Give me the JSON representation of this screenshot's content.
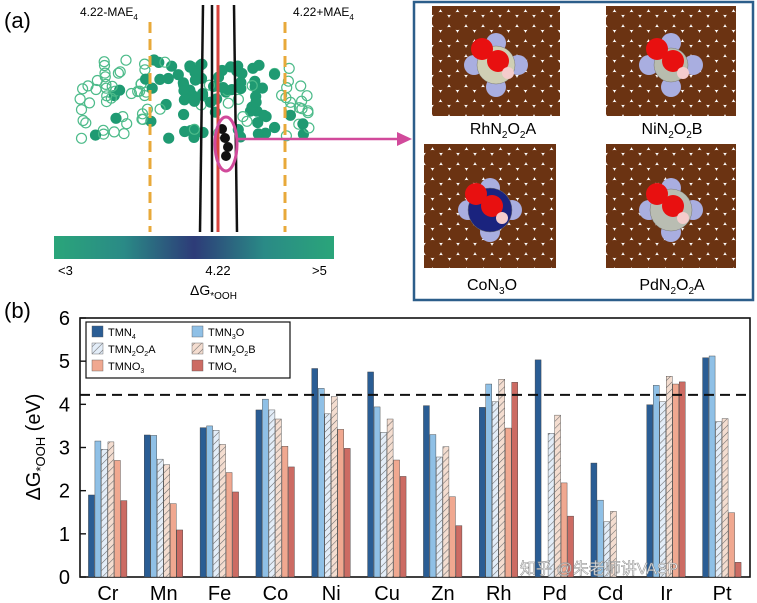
{
  "panel_a": {
    "label": "(a)",
    "left_line_label": "4.22-MAE",
    "left_line_sub": "4",
    "right_line_label": "4.22+MAE",
    "right_line_sub": "4",
    "colorbar": {
      "min_label": "<3",
      "mid_label": "4.22",
      "max_label": ">5"
    },
    "axis_label_main": "ΔG",
    "axis_label_sub": "*OOH",
    "colors": {
      "dashed": "#e8a93a",
      "center_line": "#d9453e",
      "outline": "#111111",
      "dot_filled": "#1f9a72",
      "dot_open": "#4dbb8a",
      "highlight": "#d14a9b",
      "box": "#2c5e8a"
    },
    "structures": [
      {
        "label_main": "RhN",
        "s1": "2",
        "mid": "O",
        "s2": "2",
        "tail": "A"
      },
      {
        "label_main": "NiN",
        "s1": "2",
        "mid": "O",
        "s2": "2",
        "tail": "B"
      },
      {
        "label_main": "CoN",
        "s1": "3",
        "mid": "O",
        "s2": "",
        "tail": ""
      },
      {
        "label_main": "PdN",
        "s1": "2",
        "mid": "O",
        "s2": "2",
        "tail": "A"
      }
    ]
  },
  "panel_b": {
    "label": "(b)",
    "ylabel_main": "ΔG",
    "ylabel_sub": "*OOH",
    "ylabel_unit": " (eV)",
    "watermark": "知乎 @朱老师讲VASP"
  },
  "chart_data": {
    "type": "bar",
    "title": "",
    "xlabel": "",
    "ylabel": "ΔG*OOH (eV)",
    "ylim": [
      0,
      6
    ],
    "yticks": [
      "0",
      "1",
      "2",
      "3",
      "4",
      "5",
      "6"
    ],
    "reference_line": 4.22,
    "categories": [
      "Cr",
      "Mn",
      "Fe",
      "Co",
      "Ni",
      "Cu",
      "Zn",
      "Rh",
      "Pd",
      "Cd",
      "Ir",
      "Pt"
    ],
    "series": [
      {
        "name": "TMN4",
        "legend_main": "TMN",
        "legend_sub": "4",
        "legend_tail": "",
        "color": "#2a5d94",
        "pattern": "solid",
        "values": [
          1.9,
          3.29,
          3.46,
          3.87,
          4.83,
          4.75,
          3.97,
          3.93,
          5.03,
          2.64,
          3.99,
          5.08
        ]
      },
      {
        "name": "TMN3O",
        "legend_main": "TMN",
        "legend_sub": "3",
        "legend_tail": "O",
        "color": "#8fc0e6",
        "pattern": "solid",
        "values": [
          3.15,
          3.28,
          3.5,
          4.12,
          4.37,
          3.94,
          3.3,
          4.47,
          0,
          1.78,
          4.44,
          5.12
        ]
      },
      {
        "name": "TMN2O2A",
        "legend_main": "TMN",
        "legend_sub": "2",
        "legend_tail": "O2A",
        "color": "#e3edf8",
        "pattern": "hatch",
        "values": [
          2.96,
          2.73,
          3.4,
          3.87,
          3.78,
          3.35,
          2.78,
          4.06,
          3.33,
          1.28,
          4.06,
          3.6
        ]
      },
      {
        "name": "TMN2O2B",
        "legend_main": "TMN",
        "legend_sub": "2",
        "legend_tail": "O2B",
        "color": "#f4ddd0",
        "pattern": "hatch",
        "values": [
          3.13,
          2.6,
          3.07,
          3.66,
          4.18,
          3.66,
          3.02,
          4.58,
          3.75,
          1.52,
          4.65,
          3.67
        ]
      },
      {
        "name": "TMNO3",
        "legend_main": "TMNO",
        "legend_sub": "3",
        "legend_tail": "",
        "color": "#f0a890",
        "pattern": "solid",
        "values": [
          2.7,
          1.7,
          2.42,
          3.03,
          3.42,
          2.71,
          1.86,
          3.45,
          2.18,
          0,
          4.47,
          1.49
        ]
      },
      {
        "name": "TMO4",
        "legend_main": "TMO",
        "legend_sub": "4",
        "legend_tail": "",
        "color": "#cc6b63",
        "pattern": "solid",
        "values": [
          1.77,
          1.09,
          1.97,
          2.55,
          2.98,
          2.33,
          1.19,
          4.51,
          1.41,
          0,
          4.52,
          0.34
        ]
      }
    ]
  }
}
